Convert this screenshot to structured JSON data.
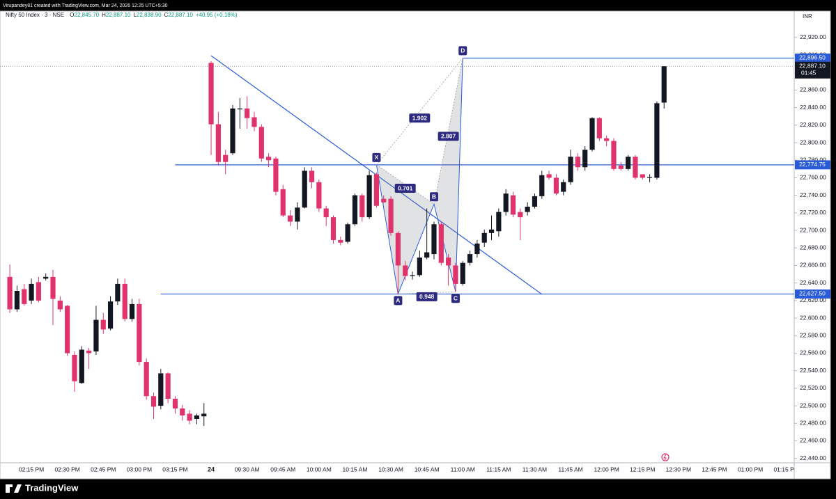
{
  "credit": "Virupandey81 created with TradingView.com, Mar 24, 2026 12:25 UTC+5:30",
  "brand": "TradingView",
  "chart_data": {
    "type": "candlestick",
    "symbol": "Nifty 50 Index · 3 · NSE",
    "legend_items": [
      {
        "key": "O",
        "text": "22,845.70"
      },
      {
        "key": "H",
        "text": "22,887.10"
      },
      {
        "key": "L",
        "text": "22,838.90"
      },
      {
        "key": "C",
        "text": "22,887.10"
      }
    ],
    "change": "+40.95 (+0.18%)",
    "currency": "INR",
    "up_color": "#131722",
    "down_color": "#e0336c",
    "line_color": "#2a5bd7",
    "categories": [
      null,
      null,
      null,
      "02:15 PM",
      null,
      null,
      null,
      null,
      "02:30 PM",
      null,
      null,
      null,
      null,
      "02:45 PM",
      null,
      null,
      null,
      null,
      "03:00 PM",
      null,
      null,
      null,
      null,
      "03:15 PM",
      null,
      null,
      null,
      null,
      "24",
      null,
      null,
      null,
      null,
      "09:30 AM",
      null,
      null,
      null,
      null,
      "09:45 AM",
      null,
      null,
      null,
      null,
      "10:00 AM",
      null,
      null,
      null,
      null,
      "10:15 AM",
      null,
      null,
      null,
      null,
      "10:30 AM",
      null,
      null,
      null,
      null,
      "10:45 AM",
      null,
      null,
      null,
      null,
      "11:00 AM",
      null,
      null,
      null,
      null,
      "11:15 AM",
      null,
      null,
      null,
      null,
      "11:30 AM",
      null,
      null,
      null,
      null,
      "11:45 AM",
      null,
      null,
      null,
      null,
      "12:00 PM",
      null,
      null,
      null,
      null,
      "12:15 PM",
      null,
      null,
      null,
      null,
      "12:30 PM",
      null,
      null,
      null,
      null,
      "12:45 PM",
      null,
      null,
      null,
      null,
      "01:00 PM",
      null,
      null,
      null,
      null,
      "01:15 PM",
      null
    ],
    "open": [
      22647,
      22610,
      22633,
      22620,
      22641,
      22645,
      22647,
      22620,
      22614,
      22558,
      22526,
      22563,
      22562,
      22598,
      22588,
      22619,
      22639,
      22599,
      22616,
      22550,
      22511,
      22500,
      22537,
      22508,
      22497,
      22491,
      22485,
      22488,
      22891,
      22821,
      22786,
      22788,
      22838,
      22839,
      22829,
      22818,
      22784,
      22782,
      22747,
      22717,
      22710,
      22726,
      22768,
      22755,
      22725,
      22715,
      22689,
      22687,
      22707,
      22740,
      22715,
      22764,
      22736,
      22736,
      22697,
      22660,
      22648,
      22649,
      22669,
      22673,
      22707,
      22669,
      22660,
      22639,
      22663,
      22673,
      22686,
      22697,
      22699,
      22721,
      22740,
      22721,
      22721,
      22727,
      22739,
      22764,
      22760,
      22744,
      22755,
      22784,
      22772,
      22792,
      22828,
      22805,
      22802,
      22774,
      22770,
      22784,
      22764,
      22760,
      22760,
      22845.7,
      null,
      null,
      null,
      null,
      null,
      null,
      null,
      null,
      null,
      null,
      null,
      null,
      null,
      null,
      null,
      null,
      null,
      null
    ],
    "high": [
      22661,
      22637,
      22639,
      22645,
      22647,
      22651,
      22655,
      22625,
      22615,
      22562,
      22568,
      22566,
      22614,
      22606,
      22625,
      22645,
      22645,
      22622,
      22622,
      22554,
      22515,
      22542,
      22538,
      22511,
      22501,
      22495,
      22491,
      22503,
      22893,
      22835,
      22792,
      22843,
      22851,
      22853,
      22835,
      22821,
      22788,
      22784,
      22752,
      22723,
      22732,
      22772,
      22772,
      22758,
      22728,
      22717,
      22693,
      22709,
      22742,
      22742,
      22768,
      22766,
      22740,
      22739,
      22699,
      22665,
      22653,
      22677,
      22725,
      22710,
      22710,
      22673,
      22663,
      22665,
      22677,
      22689,
      22701,
      22717,
      22725,
      22747,
      22744,
      22725,
      22732,
      22742,
      22768,
      22768,
      22764,
      22758,
      22792,
      22788,
      22796,
      22829,
      22829,
      22808,
      22805,
      22778,
      22786,
      22786,
      22764,
      22764,
      22847,
      22887.1,
      null,
      null,
      null,
      null,
      null,
      null,
      null,
      null,
      null,
      null,
      null,
      null,
      null,
      null,
      null,
      null,
      null,
      null
    ],
    "low": [
      22606,
      22607,
      22614,
      22616,
      22618,
      22643,
      22592,
      22607,
      22557,
      22516,
      22525,
      22542,
      22558,
      22582,
      22586,
      22615,
      22596,
      22596,
      22546,
      22507,
      22485,
      22496,
      22503,
      22491,
      22483,
      22479,
      22479,
      22477,
      22786,
      22774,
      22764,
      22786,
      22816,
      22816,
      22813,
      22778,
      22772,
      22740,
      22715,
      22705,
      22701,
      22725,
      22748,
      22721,
      22705,
      22685,
      22683,
      22685,
      22705,
      22710,
      22713,
      22726,
      22731,
      22694,
      22627.5,
      22643,
      22644,
      22647,
      22667,
      22667,
      22660,
      22637,
      22630,
      22637,
      22660,
      22669,
      22681,
      22689,
      22693,
      22717,
      22715,
      22689,
      22717,
      22725,
      22736,
      22758,
      22740,
      22740,
      22752,
      22768,
      22768,
      22790,
      22802,
      22796,
      22768,
      22768,
      22768,
      22758,
      22758,
      22755,
      22758,
      22838.9,
      null,
      null,
      null,
      null,
      null,
      null,
      null,
      null,
      null,
      null,
      null,
      null,
      null,
      null,
      null,
      null,
      null,
      null
    ],
    "close": [
      22610,
      22631,
      22616,
      22639,
      22620,
      22647,
      22622,
      22610,
      22560,
      22528,
      22564,
      22560,
      22598,
      22587,
      22619,
      22639,
      22599,
      22616,
      22550,
      22511,
      22499,
      22537,
      22508,
      22497,
      22489,
      22483,
      22489,
      22491,
      22821,
      22778,
      22778,
      22839,
      22839,
      22828,
      22818,
      22782,
      22780,
      22744,
      22717,
      22710,
      22726,
      22768,
      22755,
      22725,
      22715,
      22689,
      22686,
      22707,
      22740,
      22715,
      22763,
      22728,
      22732,
      22697,
      22660,
      22648,
      22649,
      22669,
      22675,
      22707,
      22663,
      22660,
      22639,
      22663,
      22673,
      22685,
      22697,
      22701,
      22721,
      22742,
      22718,
      22715,
      22727,
      22739,
      22763,
      22760,
      22742,
      22755,
      22784,
      22772,
      22792,
      22828,
      22805,
      22802,
      22770,
      22770,
      22784,
      22760,
      22760,
      22761,
      22845,
      22887.1,
      null,
      null,
      null,
      null,
      null,
      null,
      null,
      null,
      null,
      null,
      null,
      null,
      null,
      null,
      null,
      null,
      null,
      null
    ],
    "ylim": [
      22435,
      22950
    ],
    "yticks": [
      {
        "value": 22440,
        "label": "22,440.00"
      },
      {
        "value": 22460,
        "label": "22,460.00"
      },
      {
        "value": 22480,
        "label": "22,480.00"
      },
      {
        "value": 22500,
        "label": "22,500.00"
      },
      {
        "value": 22520,
        "label": "22,520.00"
      },
      {
        "value": 22540,
        "label": "22,540.00"
      },
      {
        "value": 22560,
        "label": "22,560.00"
      },
      {
        "value": 22580,
        "label": "22,580.00"
      },
      {
        "value": 22600,
        "label": "22,600.00"
      },
      {
        "value": 22620,
        "label": "22,620.00"
      },
      {
        "value": 22640,
        "label": "22,640.00"
      },
      {
        "value": 22660,
        "label": "22,660.00"
      },
      {
        "value": 22680,
        "label": "22,680.00"
      },
      {
        "value": 22700,
        "label": "22,700.00"
      },
      {
        "value": 22720,
        "label": "22,720.00"
      },
      {
        "value": 22740,
        "label": "22,740.00"
      },
      {
        "value": 22760,
        "label": "22,760.00"
      },
      {
        "value": 22780,
        "label": "22,780.00"
      },
      {
        "value": 22800,
        "label": "22,800.00"
      },
      {
        "value": 22820,
        "label": "22,820.00"
      },
      {
        "value": 22840,
        "label": "22,840.00"
      },
      {
        "value": 22860,
        "label": "22,860.00"
      },
      {
        "value": 22880,
        "label": "22,880.00"
      },
      {
        "value": 22900,
        "label": "22,900.00"
      },
      {
        "value": 22920,
        "label": "22,920.00"
      }
    ],
    "hlines": [
      {
        "value": 22896.5,
        "label": "22,896.50"
      },
      {
        "value": 22774.75,
        "label": "22,774.75"
      },
      {
        "value": 22627.5,
        "label": "22,627.50"
      }
    ],
    "last_price": {
      "value": 22887.1,
      "label": "22,887.10"
    },
    "countdown": "01:45",
    "pattern": {
      "points": [
        {
          "label": "X",
          "value": 22774.75
        },
        {
          "label": "A",
          "value": 22627.5
        },
        {
          "label": "B",
          "value": 22730
        },
        {
          "label": "C",
          "value": 22630
        },
        {
          "label": "D",
          "value": 22896.5
        }
      ],
      "ratios": [
        0.701,
        0.948,
        1.902,
        2.807
      ]
    }
  }
}
